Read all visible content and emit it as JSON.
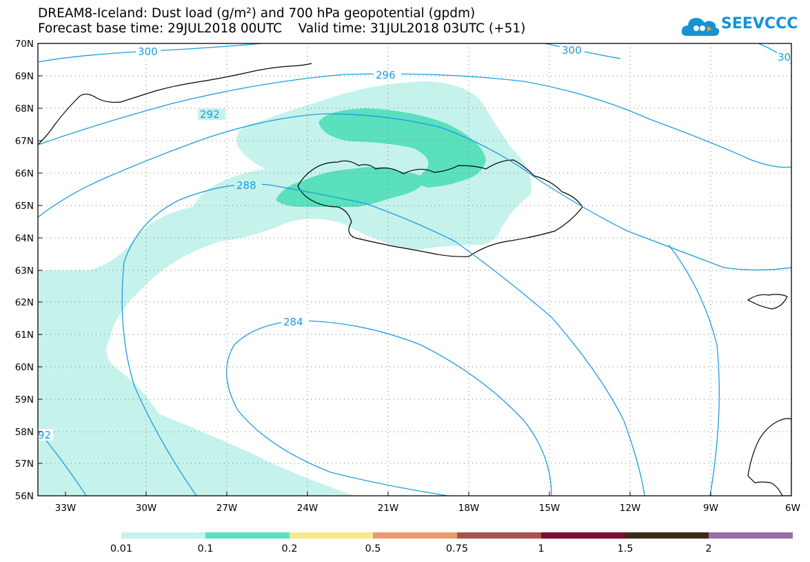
{
  "header": {
    "title_line_1": "DREAM8-Iceland: Dust load (g/m²) and 700 hPa geopotential (gpdm)",
    "title_line_2": "Forecast base time: 29JUL2018 00UTC    Valid time: 31JUL2018 03UTC (+51)"
  },
  "logo": {
    "text": "SEEVCCC",
    "icon": "cloud-icon",
    "color": "#1592d6"
  },
  "axes": {
    "lat_labels": [
      "70N",
      "69N",
      "68N",
      "67N",
      "66N",
      "65N",
      "64N",
      "63N",
      "62N",
      "61N",
      "60N",
      "59N",
      "58N",
      "57N",
      "56N"
    ],
    "lon_labels": [
      "33W",
      "30W",
      "27W",
      "24W",
      "21W",
      "18W",
      "15W",
      "12W",
      "9W",
      "6W"
    ]
  },
  "contours": {
    "color": "#1a9be0",
    "labels": [
      "300",
      "300",
      "30",
      "296",
      "292",
      "288",
      "284",
      "92"
    ]
  },
  "colorbar": {
    "colors": [
      "#c6f2ec",
      "#5ae0bc",
      "#f7e98a",
      "#ec9a6e",
      "#a9524d",
      "#7a1030",
      "#3a2a1a",
      "#9a6ea6"
    ],
    "labels": [
      "0.01",
      "0.1",
      "0.2",
      "0.5",
      "0.75",
      "1",
      "1.5",
      "2"
    ]
  }
}
